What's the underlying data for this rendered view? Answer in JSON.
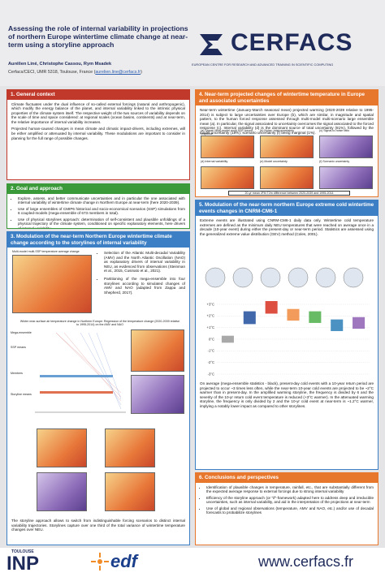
{
  "header": {
    "title": "Assessing the role of internal variability in projections of northern Europe wintertime climate change at near-term using a storyline approach",
    "authors": "Aurélien Liné, Christophe Cassou, Rym Msadek",
    "affiliation": "Cerfacs/CECI, UMR 5318, Toulouse, France (",
    "email": "aurelien.line@cerfacs.fr",
    "affiliation_end": ")",
    "logo": "CERFACS",
    "tagline": "EUROPEAN CENTRE FOR RESEARCH AND ADVANCED TRAINING IN SCIENTIFIC COMPUTING"
  },
  "sections": [
    {
      "heading": "1. General context",
      "paragraphs": [
        "Climate fluctuates under the dual influence of so-called external forcings (natural and anthropogenic), which modify the energy balance of the planet, and internal variability linked to the intrinsic physical properties of the climate system itself. The respective weight of the two sources of variability depends on the scale of time and space considered: at regional scales (ocean basins, continents) and at near-term, the relative importance of internal variability increases.",
        "Projected human-caused changes in mean climate and climatic impact-drivers, including extremes, will be either amplified or attenuated by internal variability. These modulations are important to consider in planning for the full range of possible changes."
      ]
    },
    {
      "heading": "2. Goal and approach",
      "bullets": [
        "Explore, assess, and better communicate uncertainties and in particular the one associated with internal variability of wintertime climate change in Northern Europe at near-term (here 2020-2039).",
        "Use of large ensembles of CMIP6 historical and socio-economical scenarios (SSP) simulations from 6 coupled-models (mega-ensemble of 673 members in total).",
        "Use of physical storylines approach: determination of self-consistent and plausible unfoldings of a physical trajectory of the climate system, conditioned on specific explanatory elements, here drivers of internal variability."
      ]
    },
    {
      "heading": "3. Modulation of the near-term Northern Europe wintertime climate change according to the storylines of internal variability",
      "figure_title": "Multi-model multi-SSP temperature average change",
      "bullets": [
        "Selection of the Atlantic Multi-decadal Variability (AMV) and the North Atlantic Oscillation (NAO) as explanatory drivers of internal variability in NEU, as evidenced from observations (Steinman et al., 2015, Cusinato et al., 2021).",
        "Partitioning of the mega-ensemble into four storylines according to simulated changes of AMV and NAO (adapted from Zappa and Shepherd, 2017)."
      ],
      "figure2_title": "Winter near-surface air temperature change in Northern Europe: Regression of the temperature change (2020-2039 relative to 1995-2014) on the AMV and NAO",
      "row_labels": [
        "Mega-ensemble",
        "SSP means",
        "Members",
        "Storyline means"
      ],
      "paragraph": "The storyline approach allows to switch from indistinguishable forcing scenarios to distinct internal variability trajectories. Storylines capture over one third of the total variance of wintertime temperature changes over NEU."
    },
    {
      "heading": "4. Near-term projected changes of wintertime temperature in Europe and associated uncertainties",
      "paragraph": "Near-term wintertime (January-March seasonal mean) projected warming (2020-2039 relative to 1995-2014) is subject to large uncertainties over Europe (b), which are similar, in magnitude and spatial pattern, to the human forced response assessed through multi-model multi-scenario large ensemble mean (a). In particular, the signal associated to uncertainty overcomes the signal associated to the forced response (c). Internal variability (d) is the dominant source of total uncertainty (81%), followed by the model uncertainty (18%); scenario uncertainty (f) being marginal (1%).",
      "panels": [
        "(a) Signal: Multi-model multi-SSP forced response",
        "(b) Noise: total uncertainty",
        "(c) Signal-to-noise ratio",
        "(d) Internal variability",
        "(e) Model uncertainty",
        "(f) Scenario uncertainty"
      ],
      "caption": "20-yr mean JFM T2m difference between 2020-2039 and 1995-2014"
    },
    {
      "heading": "5. Modulation of the near-term northern Europe extreme cold wintertime events changes in CNRM-CM6-1",
      "paragraph": "Extreme events are illustrated using CNRM-CM6-1 daily data only. Wintertime cold temperature extremes are defined as the minimum daily NEU temperatures that were reached on average once in a decade (10-year event) during either the present-day or near-term period. Statistics are assessed using the generalized extreme value distribution (GEV) method (Coles, 2001).",
      "chart": {
        "ylim": [
          -3,
          3
        ],
        "yticks": [
          {
            "value": 3,
            "label": "+3°C"
          },
          {
            "value": 2,
            "label": "+2°C"
          },
          {
            "value": 1,
            "label": "+1°C"
          },
          {
            "value": 0,
            "label": "0°C"
          },
          {
            "value": -1,
            "label": "-1°C"
          },
          {
            "value": -2,
            "label": "-2°C"
          },
          {
            "value": -3,
            "label": "-3°C"
          }
        ],
        "boxes": [
          {
            "low": -0.3,
            "high": 0.3,
            "color": "#9a9a9a"
          },
          {
            "low": 1.3,
            "high": 2.4,
            "color": "#1f4e9c"
          },
          {
            "low": 2.2,
            "high": 3.3,
            "color": "#d7301f"
          },
          {
            "low": 1.6,
            "high": 2.6,
            "color": "#f08a3e"
          },
          {
            "low": 1.4,
            "high": 2.4,
            "color": "#4daf4a"
          },
          {
            "low": 0.7,
            "high": 1.7,
            "color": "#2c7fb8"
          },
          {
            "low": 0.9,
            "high": 1.9,
            "color": "#8e5fb3"
          }
        ]
      },
      "paragraph2": "On average (mega-ensemble statistics - black), present-day cold events with a 10-year return period are projected to occur ~3 times less often, while the near-term 10-year cold events are projected to be ~2°C warmer than in present-day. In the amplified warming storyline, the frequency is divided by 6 and the severity of the 10-yr return cold event temperature is reduced (+3°C warmer). In the attenuated warming storyline, the frequency is only divided by 2 and the 10-yr cold event at near-term is ~1.2°C warmer, implying a notably lower impact as compared to other storylines."
    },
    {
      "heading": "6. Conclusions and perspectives",
      "bullets": [
        "Identification of plausible changes in temperature, rainfall, etc., that are substantially different from the expected average response to external forcings due to strong internal variability",
        "Efficiency of the storyline approach (or \"if\"-framework) adapted here to address deep and irreducible uncertainties, such as internal variability, and aid in the interpretation of the projections at near-term",
        "Use of global and regional observations (temperature, AMV and NAO, etc.) and/or use of decadal forecasts to probabilize storylines"
      ]
    }
  ],
  "footer": {
    "inp_top": "TOULOUSE",
    "inp": "INP",
    "edf": "edf",
    "url": "www.cerfacs.fr"
  }
}
